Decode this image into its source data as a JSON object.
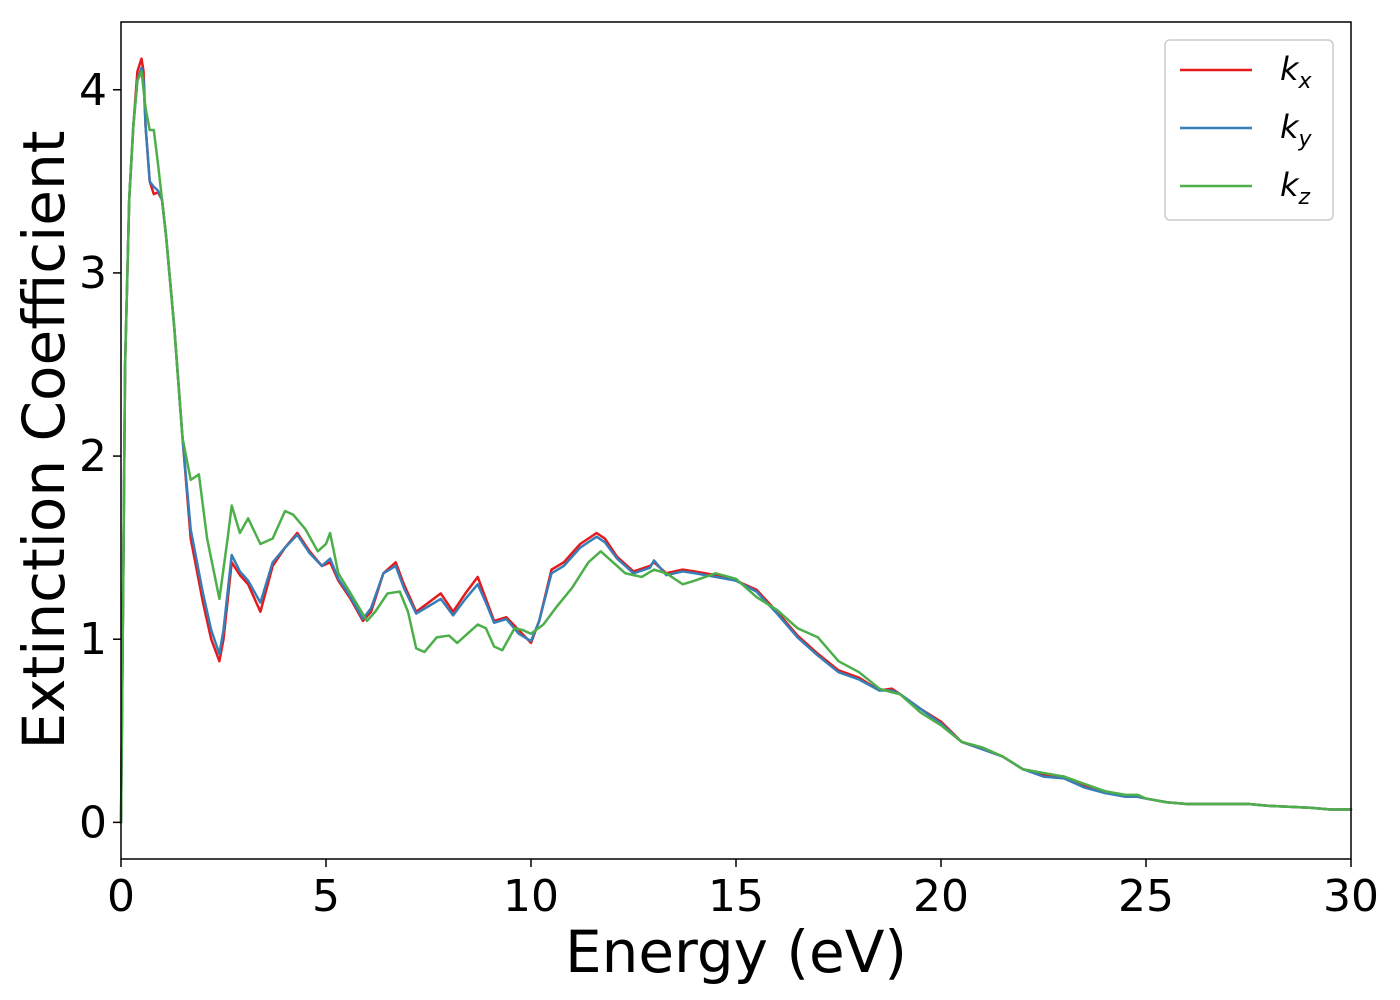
{
  "chart_data": {
    "type": "line",
    "title": "",
    "xlabel": "Energy (eV)",
    "ylabel": "Extinction Coefficient",
    "xlim": [
      0,
      30
    ],
    "ylim": [
      -0.2,
      4.37
    ],
    "xticks": [
      0,
      5,
      10,
      15,
      20,
      25,
      30
    ],
    "yticks": [
      0,
      1,
      2,
      3,
      4
    ],
    "grid": false,
    "legend_position": "top-right",
    "series": [
      {
        "name": "k",
        "subscript": "x",
        "color": "#e41a1c",
        "x": [
          0,
          0.05,
          0.1,
          0.2,
          0.3,
          0.4,
          0.5,
          0.55,
          0.6,
          0.7,
          0.8,
          0.9,
          1.0,
          1.1,
          1.3,
          1.5,
          1.7,
          2.0,
          2.2,
          2.4,
          2.5,
          2.7,
          2.9,
          3.1,
          3.4,
          3.7,
          4.0,
          4.3,
          4.6,
          4.9,
          5.1,
          5.3,
          5.6,
          5.9,
          6.1,
          6.4,
          6.7,
          6.9,
          7.2,
          7.5,
          7.8,
          8.1,
          8.4,
          8.7,
          8.9,
          9.1,
          9.4,
          9.7,
          10.0,
          10.2,
          10.5,
          10.8,
          11.2,
          11.6,
          11.8,
          12.1,
          12.5,
          12.9,
          13.0,
          13.3,
          13.7,
          14.0,
          14.5,
          15.0,
          15.5,
          16.0,
          16.5,
          17.0,
          17.5,
          18.0,
          18.5,
          18.8,
          19.0,
          19.5,
          20.0,
          20.5,
          21.0,
          21.5,
          22.0,
          22.5,
          23.0,
          23.5,
          24.0,
          24.5,
          24.8,
          25.0,
          25.5,
          26.0,
          27.0,
          27.5,
          28.0,
          29.0,
          29.5,
          30.0
        ],
        "y": [
          0,
          1.2,
          2.5,
          3.4,
          3.8,
          4.1,
          4.17,
          4.1,
          3.8,
          3.5,
          3.43,
          3.44,
          3.4,
          3.2,
          2.7,
          2.1,
          1.55,
          1.2,
          1.0,
          0.88,
          1.0,
          1.42,
          1.35,
          1.3,
          1.15,
          1.4,
          1.5,
          1.58,
          1.48,
          1.4,
          1.42,
          1.32,
          1.22,
          1.1,
          1.15,
          1.36,
          1.42,
          1.3,
          1.15,
          1.2,
          1.25,
          1.15,
          1.25,
          1.34,
          1.22,
          1.1,
          1.12,
          1.05,
          0.98,
          1.1,
          1.38,
          1.42,
          1.52,
          1.58,
          1.55,
          1.45,
          1.37,
          1.4,
          1.42,
          1.36,
          1.38,
          1.37,
          1.35,
          1.32,
          1.27,
          1.15,
          1.02,
          0.92,
          0.83,
          0.79,
          0.72,
          0.73,
          0.7,
          0.62,
          0.55,
          0.44,
          0.4,
          0.36,
          0.29,
          0.26,
          0.25,
          0.2,
          0.17,
          0.14,
          0.14,
          0.13,
          0.11,
          0.1,
          0.1,
          0.1,
          0.09,
          0.08,
          0.07,
          0.07
        ]
      },
      {
        "name": "k",
        "subscript": "y",
        "color": "#377eb8",
        "x": [
          0,
          0.05,
          0.1,
          0.2,
          0.3,
          0.4,
          0.5,
          0.55,
          0.6,
          0.7,
          0.8,
          0.9,
          1.0,
          1.1,
          1.3,
          1.5,
          1.7,
          2.0,
          2.2,
          2.4,
          2.5,
          2.7,
          2.9,
          3.1,
          3.4,
          3.7,
          4.0,
          4.3,
          4.6,
          4.9,
          5.1,
          5.3,
          5.6,
          5.9,
          6.1,
          6.4,
          6.7,
          6.9,
          7.2,
          7.5,
          7.8,
          8.1,
          8.4,
          8.7,
          8.9,
          9.1,
          9.4,
          9.7,
          10.0,
          10.2,
          10.5,
          10.8,
          11.2,
          11.6,
          11.8,
          12.1,
          12.5,
          12.9,
          13.0,
          13.3,
          13.7,
          14.0,
          14.5,
          15.0,
          15.5,
          16.0,
          16.5,
          17.0,
          17.5,
          18.0,
          18.5,
          18.8,
          19.0,
          19.5,
          20.0,
          20.5,
          21.0,
          21.5,
          22.0,
          22.5,
          23.0,
          23.5,
          24.0,
          24.5,
          24.8,
          25.0,
          25.5,
          26.0,
          27.0,
          27.5,
          28.0,
          29.0,
          29.5,
          30.0
        ],
        "y": [
          0,
          1.2,
          2.5,
          3.4,
          3.8,
          4.05,
          4.12,
          4.05,
          3.8,
          3.5,
          3.47,
          3.45,
          3.4,
          3.2,
          2.7,
          2.1,
          1.6,
          1.25,
          1.05,
          0.92,
          1.05,
          1.46,
          1.37,
          1.32,
          1.2,
          1.42,
          1.5,
          1.57,
          1.47,
          1.4,
          1.44,
          1.33,
          1.23,
          1.11,
          1.17,
          1.36,
          1.4,
          1.28,
          1.14,
          1.18,
          1.22,
          1.13,
          1.22,
          1.3,
          1.2,
          1.09,
          1.11,
          1.03,
          0.99,
          1.1,
          1.36,
          1.4,
          1.5,
          1.56,
          1.53,
          1.44,
          1.36,
          1.39,
          1.43,
          1.35,
          1.37,
          1.36,
          1.34,
          1.32,
          1.26,
          1.14,
          1.01,
          0.91,
          0.82,
          0.78,
          0.72,
          0.72,
          0.7,
          0.62,
          0.54,
          0.44,
          0.4,
          0.36,
          0.29,
          0.25,
          0.24,
          0.19,
          0.16,
          0.14,
          0.14,
          0.13,
          0.11,
          0.1,
          0.1,
          0.1,
          0.09,
          0.08,
          0.07,
          0.07
        ]
      },
      {
        "name": "k",
        "subscript": "z",
        "color": "#4daf4a",
        "x": [
          0,
          0.05,
          0.1,
          0.2,
          0.3,
          0.4,
          0.5,
          0.6,
          0.7,
          0.8,
          0.9,
          1.0,
          1.1,
          1.3,
          1.5,
          1.7,
          1.9,
          2.1,
          2.4,
          2.6,
          2.7,
          2.9,
          3.1,
          3.4,
          3.7,
          4.0,
          4.2,
          4.5,
          4.8,
          5.0,
          5.1,
          5.3,
          5.6,
          6.0,
          6.2,
          6.5,
          6.8,
          7.0,
          7.2,
          7.4,
          7.7,
          8.0,
          8.2,
          8.4,
          8.7,
          8.9,
          9.1,
          9.3,
          9.6,
          9.8,
          10.0,
          10.3,
          10.6,
          11.0,
          11.4,
          11.7,
          12.0,
          12.3,
          12.7,
          13.0,
          13.3,
          13.7,
          14.0,
          14.5,
          15.0,
          15.5,
          16.0,
          16.5,
          17.0,
          17.5,
          18.0,
          18.5,
          18.8,
          19.0,
          19.5,
          20.0,
          20.5,
          21.0,
          21.5,
          22.0,
          22.5,
          23.0,
          23.5,
          24.0,
          24.5,
          24.8,
          25.0,
          25.5,
          26.0,
          27.0,
          27.5,
          28.0,
          29.0,
          29.5,
          30.0
        ],
        "y": [
          0,
          1.2,
          2.5,
          3.4,
          3.8,
          4.05,
          4.1,
          3.9,
          3.78,
          3.78,
          3.6,
          3.4,
          3.2,
          2.7,
          2.1,
          1.87,
          1.9,
          1.55,
          1.22,
          1.55,
          1.73,
          1.58,
          1.66,
          1.52,
          1.55,
          1.7,
          1.68,
          1.6,
          1.48,
          1.52,
          1.58,
          1.36,
          1.25,
          1.1,
          1.15,
          1.25,
          1.26,
          1.15,
          0.95,
          0.93,
          1.01,
          1.02,
          0.98,
          1.02,
          1.08,
          1.06,
          0.96,
          0.94,
          1.06,
          1.05,
          1.03,
          1.08,
          1.17,
          1.28,
          1.42,
          1.48,
          1.42,
          1.36,
          1.34,
          1.38,
          1.36,
          1.3,
          1.32,
          1.36,
          1.33,
          1.23,
          1.16,
          1.06,
          1.01,
          0.88,
          0.82,
          0.73,
          0.71,
          0.7,
          0.6,
          0.53,
          0.44,
          0.41,
          0.36,
          0.29,
          0.27,
          0.25,
          0.21,
          0.17,
          0.15,
          0.15,
          0.13,
          0.11,
          0.1,
          0.1,
          0.1,
          0.09,
          0.08,
          0.07,
          0.07
        ]
      }
    ]
  }
}
